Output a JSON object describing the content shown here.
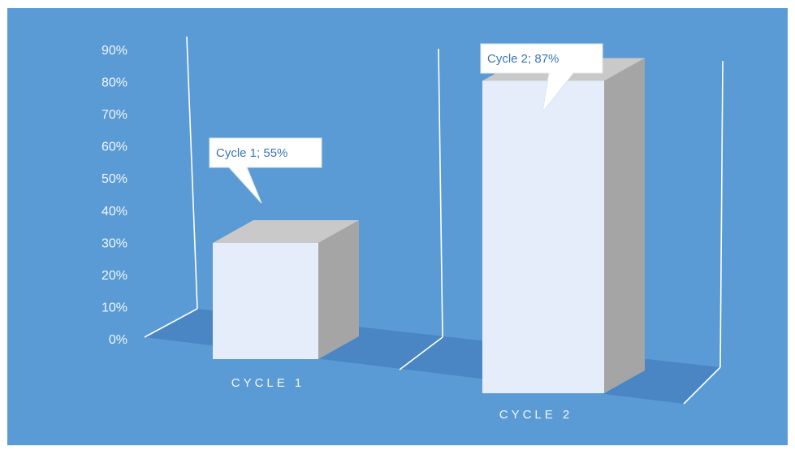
{
  "chart_data": {
    "type": "bar",
    "categories": [
      "CYCLE 1",
      "CYCLE 2"
    ],
    "values": [
      55,
      87
    ],
    "data_labels": [
      "Cycle 1; 55%",
      "Cycle 2; 87%"
    ],
    "ylim": [
      0,
      90
    ],
    "yticks": [
      "0%",
      "10%",
      "20%",
      "30%",
      "40%",
      "50%",
      "60%",
      "70%",
      "80%",
      "90%"
    ],
    "grid": false,
    "legend": "none",
    "style": "3d-column",
    "colors": {
      "background": "#5b9bd5",
      "bar_front": "#e4edf9",
      "bar_side": "#a5a5a5",
      "bar_top": "#c9c9c9",
      "floor": "#4a86c3",
      "axis_lines": "#ffffff",
      "label_text": "#f2f6fb",
      "callout_text": "#3a76b8"
    }
  }
}
